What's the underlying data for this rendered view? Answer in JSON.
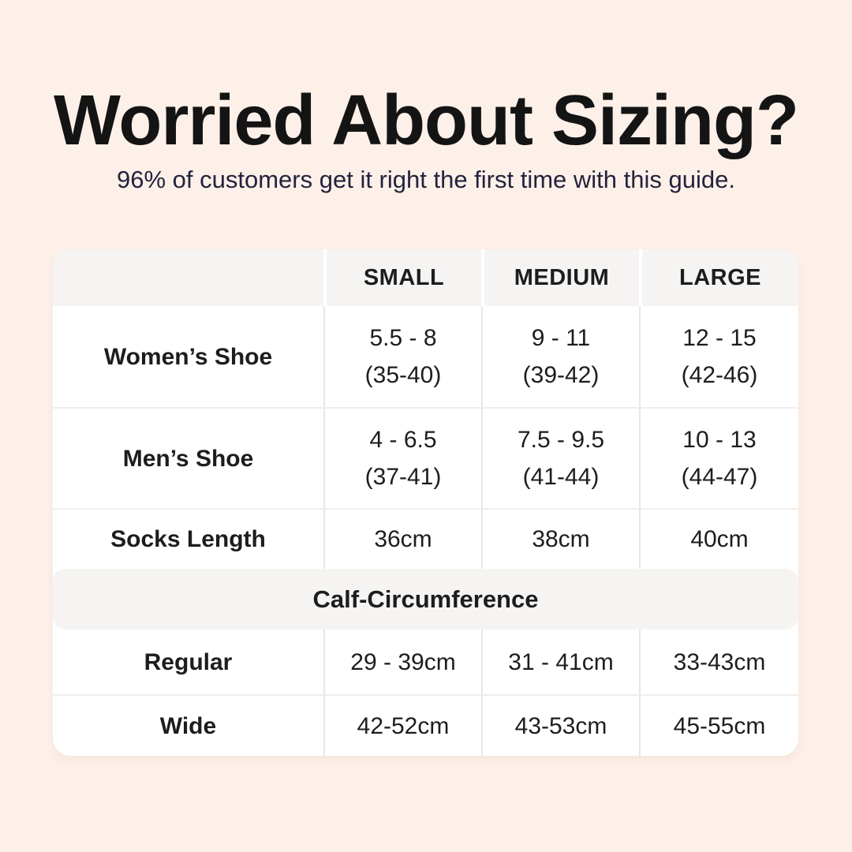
{
  "page": {
    "title": "Worried About Sizing?",
    "subtitle": "96% of customers get it right the first time with this guide."
  },
  "colors": {
    "background": "#fdf0e8",
    "card": "#ffffff",
    "band": "#f5f4f2",
    "title_text": "#141414",
    "subtitle_text": "#23233e",
    "table_text": "#1d1d1d",
    "divider": "#e9e7e4"
  },
  "size_table": {
    "columns": {
      "small": "SMALL",
      "medium": "MEDIUM",
      "large": "LARGE"
    },
    "rows": [
      {
        "label": "Women’s Shoe",
        "small": "5.5 - 8\n(35-40)",
        "medium": "9 - 11\n(39-42)",
        "large": "12 - 15\n(42-46)"
      },
      {
        "label": "Men’s Shoe",
        "small": "4 - 6.5\n(37-41)",
        "medium": "7.5 - 9.5\n(41-44)",
        "large": "10 - 13\n(44-47)"
      },
      {
        "label": "Socks Length",
        "small": "36cm",
        "medium": "38cm",
        "large": "40cm"
      }
    ],
    "section_header": "Calf-Circumference",
    "calf_rows": [
      {
        "label": "Regular",
        "small": "29 - 39cm",
        "medium": "31 - 41cm",
        "large": "33-43cm"
      },
      {
        "label": "Wide",
        "small": "42-52cm",
        "medium": "43-53cm",
        "large": "45-55cm"
      }
    ]
  }
}
